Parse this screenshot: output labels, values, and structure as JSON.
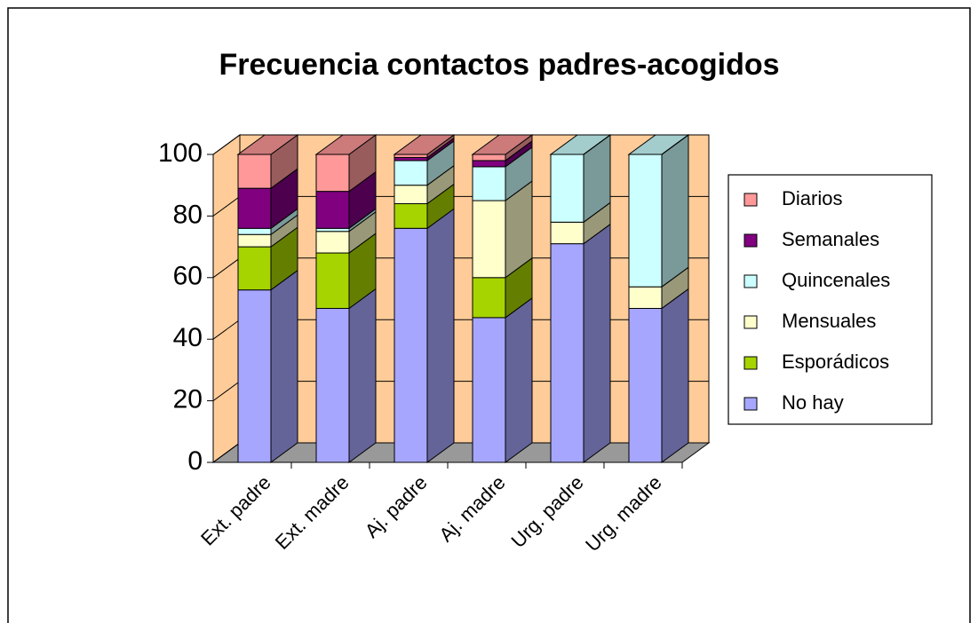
{
  "chart_data": {
    "type": "bar",
    "stacked": true,
    "three_d": true,
    "title": "Frecuencia contactos padres-acogidos",
    "categories": [
      "Ext. padre",
      "Ext. madre",
      "Aj. padre",
      "Aj. madre",
      "Urg. padre",
      "Urg. madre"
    ],
    "series": [
      {
        "name": "No hay",
        "color": "#a6a6ff",
        "values": [
          56,
          50,
          76,
          47,
          71,
          50
        ]
      },
      {
        "name": "Esporádicos",
        "color": "#a6d400",
        "values": [
          14,
          18,
          8,
          13,
          0,
          0
        ]
      },
      {
        "name": "Mensuales",
        "color": "#ffffcc",
        "values": [
          4,
          7,
          6,
          25,
          7,
          7
        ]
      },
      {
        "name": "Quincenales",
        "color": "#ccffff",
        "values": [
          2,
          1,
          8,
          11,
          22,
          43
        ]
      },
      {
        "name": "Semanales",
        "color": "#800080",
        "values": [
          13,
          12,
          1,
          2,
          0,
          0
        ]
      },
      {
        "name": "Diarios",
        "color": "#ff9999",
        "values": [
          11,
          12,
          1,
          2,
          0,
          0
        ]
      }
    ],
    "ylim": [
      0,
      100
    ],
    "yticks": [
      0,
      20,
      40,
      60,
      80,
      100
    ],
    "grid": true,
    "wall_color": "#ffcc99",
    "legend": "right"
  }
}
